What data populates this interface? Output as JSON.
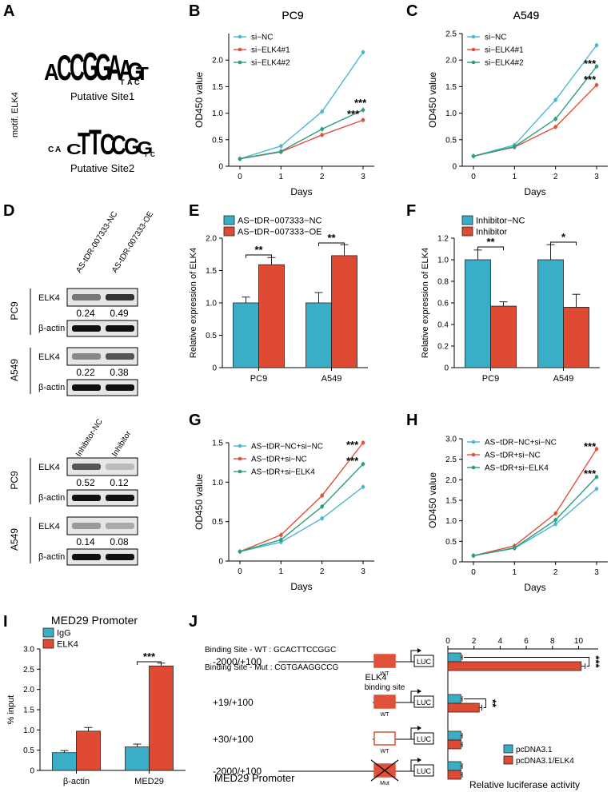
{
  "colors": {
    "c1": "#4bb8d0",
    "c2": "#e0513a",
    "c3": "#2a9d7e",
    "bar1": "#3aaec7",
    "bar2": "#df4a33"
  },
  "panelA": {
    "label": "A",
    "side": "motif. ELK4",
    "site1": "Putative Site1",
    "site2": "Putative Site2",
    "logo1": [
      "A",
      "C",
      "C",
      "G",
      "G",
      "A",
      "A",
      "G",
      "T"
    ],
    "logo1b": "TAC",
    "logo2": [
      "C",
      "T",
      "T",
      "C",
      "C",
      "G",
      "G"
    ],
    "logo2b": "CA",
    "logo2c": "TC"
  },
  "panelD": {
    "label": "D",
    "top": {
      "lanes": [
        "AS-tDR-007333-NC",
        "AS-tDR-007333-OE"
      ],
      "rows": [
        {
          "cell": "PC9",
          "elk4": "ELK4",
          "vals": [
            "0.24",
            "0.49"
          ],
          "actin": "β-actin"
        },
        {
          "cell": "A549",
          "elk4": "ELK4",
          "vals": [
            "0.22",
            "0.38"
          ],
          "actin": "β-actin"
        }
      ]
    },
    "bottom": {
      "lanes": [
        "Inhibitor-NC",
        "Inhibitor"
      ],
      "rows": [
        {
          "cell": "PC9",
          "elk4": "ELK4",
          "vals": [
            "0.52",
            "0.12"
          ],
          "actin": "β-actin"
        },
        {
          "cell": "A549",
          "elk4": "ELK4",
          "vals": [
            "0.14",
            "0.08"
          ],
          "actin": "β-actin"
        }
      ]
    }
  },
  "panelJ": {
    "label": "J",
    "wt": "Binding Site - WT : GCACTTCCGGC",
    "mut": "Binding Site - Mut : CGTGAAGGCCG",
    "elk4": "ELK4",
    "bind": "binding site",
    "luc": "LUC",
    "wtlab": "WT",
    "mutlab": "Mut",
    "rows": [
      "-2000/+100",
      "+19/+100",
      "+30/+100",
      "-2000/+100"
    ],
    "promoter": "MED29 Promoter"
  },
  "chart_data": [
    {
      "id": "B",
      "type": "line",
      "title": "PC9",
      "xlabel": "Days",
      "ylabel": "OD450 value",
      "x": [
        0,
        1,
        2,
        3
      ],
      "ylim": [
        0,
        2.5
      ],
      "yticks": [
        0,
        0.5,
        1.0,
        1.5,
        2.0
      ],
      "series": [
        {
          "name": "si−NC",
          "values": [
            0.14,
            0.38,
            1.03,
            2.15
          ]
        },
        {
          "name": "si−ELK4#1",
          "values": [
            0.14,
            0.27,
            0.59,
            0.87
          ]
        },
        {
          "name": "si−ELK4#2",
          "values": [
            0.14,
            0.28,
            0.7,
            1.06
          ]
        }
      ],
      "annotations": [
        "***",
        "***"
      ]
    },
    {
      "id": "C",
      "type": "line",
      "title": "A549",
      "xlabel": "Days",
      "ylabel": "OD450 value",
      "x": [
        0,
        1,
        2,
        3
      ],
      "ylim": [
        0,
        2.5
      ],
      "yticks": [
        0,
        0.5,
        1.0,
        1.5,
        2.0,
        2.5
      ],
      "series": [
        {
          "name": "si−NC",
          "values": [
            0.19,
            0.4,
            1.25,
            2.28
          ]
        },
        {
          "name": "si−ELK4#1",
          "values": [
            0.19,
            0.36,
            0.74,
            1.53
          ]
        },
        {
          "name": "si−ELK4#2",
          "values": [
            0.19,
            0.37,
            0.89,
            1.88
          ]
        }
      ],
      "annotations": [
        "***",
        "***"
      ]
    },
    {
      "id": "E",
      "type": "bar",
      "ylabel": "Relative expression of ELK4",
      "categories": [
        "PC9",
        "A549"
      ],
      "ylim": [
        0,
        2.0
      ],
      "yticks": [
        0,
        0.5,
        1.0,
        1.5,
        2.0
      ],
      "series": [
        {
          "name": "AS−tDR−007333−NC",
          "values": [
            1.0,
            1.0
          ],
          "err": [
            0.09,
            0.16
          ]
        },
        {
          "name": "AS−tDR−007333−OE",
          "values": [
            1.59,
            1.73
          ],
          "err": [
            0.11,
            0.17
          ]
        }
      ],
      "annotations": [
        "**",
        "**"
      ]
    },
    {
      "id": "F",
      "type": "bar",
      "ylabel": "Relative expression of ELK4",
      "categories": [
        "PC9",
        "A549"
      ],
      "ylim": [
        0,
        1.2
      ],
      "yticks": [
        0,
        0.2,
        0.4,
        0.6,
        0.8,
        1.0,
        1.2
      ],
      "series": [
        {
          "name": "Inhibitor−NC",
          "values": [
            1.0,
            1.0
          ],
          "err": [
            0.09,
            0.14
          ]
        },
        {
          "name": "Inhibitor",
          "values": [
            0.57,
            0.56
          ],
          "err": [
            0.04,
            0.12
          ]
        }
      ],
      "annotations": [
        "**",
        "*"
      ]
    },
    {
      "id": "G",
      "type": "line",
      "title": "PC9",
      "xlabel": "Days",
      "ylabel": "OD450 value",
      "x": [
        0,
        1,
        2,
        3
      ],
      "ylim": [
        0,
        1.5
      ],
      "yticks": [
        0,
        0.5,
        1.0,
        1.5
      ],
      "series": [
        {
          "name": "AS−tDR−NC+si−NC",
          "values": [
            0.12,
            0.24,
            0.54,
            0.94
          ]
        },
        {
          "name": "AS−tDR+si−NC",
          "values": [
            0.12,
            0.33,
            0.83,
            1.5
          ]
        },
        {
          "name": "AS−tDR+si−ELK4",
          "values": [
            0.12,
            0.27,
            0.69,
            1.23
          ]
        }
      ],
      "annotations": [
        "***",
        "***"
      ]
    },
    {
      "id": "H",
      "type": "line",
      "title": "A549",
      "xlabel": "Days",
      "ylabel": "OD450 value",
      "x": [
        0,
        1,
        2,
        3
      ],
      "ylim": [
        0,
        3.0
      ],
      "yticks": [
        0,
        0.5,
        1.0,
        1.5,
        2.0,
        2.5,
        3.0
      ],
      "series": [
        {
          "name": "AS−tDR−NC+si−NC",
          "values": [
            0.15,
            0.33,
            0.92,
            1.78
          ]
        },
        {
          "name": "AS−tDR+si−NC",
          "values": [
            0.15,
            0.39,
            1.18,
            2.75
          ]
        },
        {
          "name": "AS−tDR+si−ELK4",
          "values": [
            0.15,
            0.34,
            1.02,
            2.07
          ]
        }
      ],
      "annotations": [
        "***",
        "***"
      ]
    },
    {
      "id": "I",
      "type": "bar",
      "title": "MED29 Promoter",
      "ylabel": "% input",
      "categories": [
        "β-actin",
        "MED29"
      ],
      "ylim": [
        0,
        3.0
      ],
      "yticks": [
        0,
        0.5,
        1.0,
        1.5,
        2.0,
        2.5,
        3.0
      ],
      "series": [
        {
          "name": "IgG",
          "values": [
            0.44,
            0.58
          ],
          "err": [
            0.05,
            0.07
          ]
        },
        {
          "name": "ELK4",
          "values": [
            0.97,
            2.58
          ],
          "err": [
            0.09,
            0.07
          ]
        }
      ],
      "annotations": [
        "***"
      ]
    },
    {
      "id": "J",
      "type": "bar",
      "orientation": "horizontal",
      "xlabel": "Relative luciferase activity",
      "xlim": [
        0,
        11.5
      ],
      "xticks": [
        0,
        2,
        4,
        6,
        8,
        10
      ],
      "categories": [
        "-2000/+100",
        "+19/+100",
        "+30/+100",
        "-2000/+100 Mut"
      ],
      "series": [
        {
          "name": "pcDNA3.1",
          "values": [
            1.0,
            1.0,
            1.0,
            1.0
          ],
          "err": [
            0.1,
            0.1,
            0.1,
            0.1
          ]
        },
        {
          "name": "pcDNA3.1/ELK4",
          "values": [
            10.2,
            2.4,
            1.0,
            1.0
          ],
          "err": [
            0.3,
            0.2,
            0.1,
            0.1
          ]
        }
      ],
      "annotations": [
        "***",
        "**"
      ]
    }
  ]
}
